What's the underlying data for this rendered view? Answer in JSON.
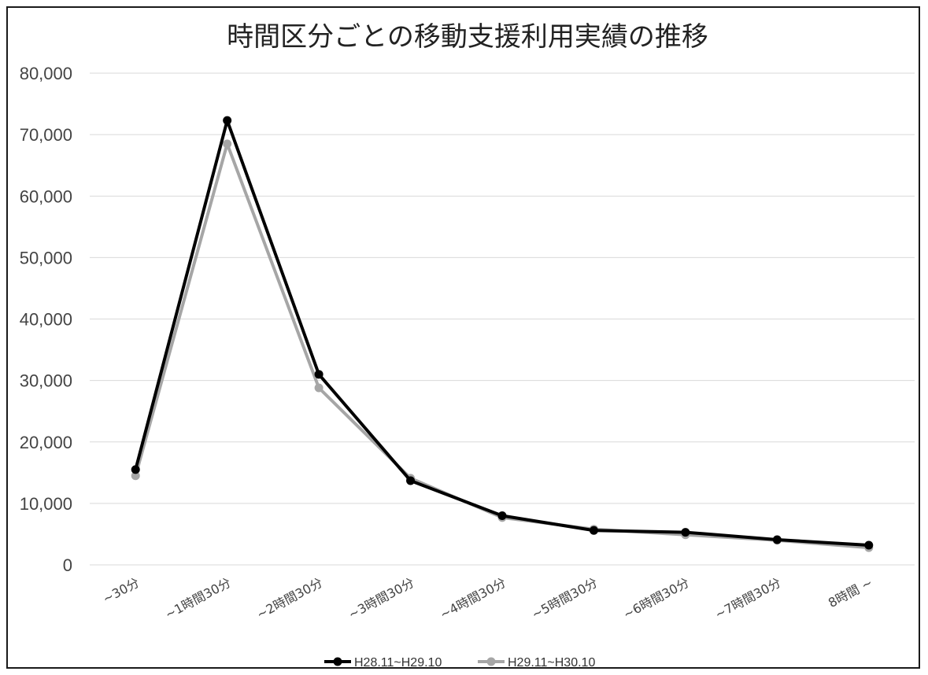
{
  "chart_data": {
    "type": "line",
    "title": "時間区分ごとの移動支援利用実績の推移",
    "xlabel": "",
    "ylabel": "",
    "categories": [
      "~30分",
      "~1時間30分",
      "~2時間30分",
      "~3時間30分",
      "~4時間30分",
      "~5時間30分",
      "~6時間30分",
      "~7時間30分",
      "8時間 ~"
    ],
    "ylim": [
      0,
      80000
    ],
    "yticks": [
      0,
      10000,
      20000,
      30000,
      40000,
      50000,
      60000,
      70000,
      80000
    ],
    "ytick_labels": [
      "0",
      "10,000",
      "20,000",
      "30,000",
      "40,000",
      "50,000",
      "60,000",
      "70,000",
      "80,000"
    ],
    "grid": true,
    "legend_position": "bottom",
    "series": [
      {
        "name": "H28.11~H29.10",
        "color": "#000000",
        "values": [
          15500,
          72300,
          31000,
          13700,
          8000,
          5600,
          5300,
          4100,
          3200
        ]
      },
      {
        "name": "H29.11~H30.10",
        "color": "#a6a6a6",
        "values": [
          14500,
          68500,
          28800,
          14100,
          7700,
          5800,
          4900,
          4000,
          2800
        ]
      }
    ]
  }
}
